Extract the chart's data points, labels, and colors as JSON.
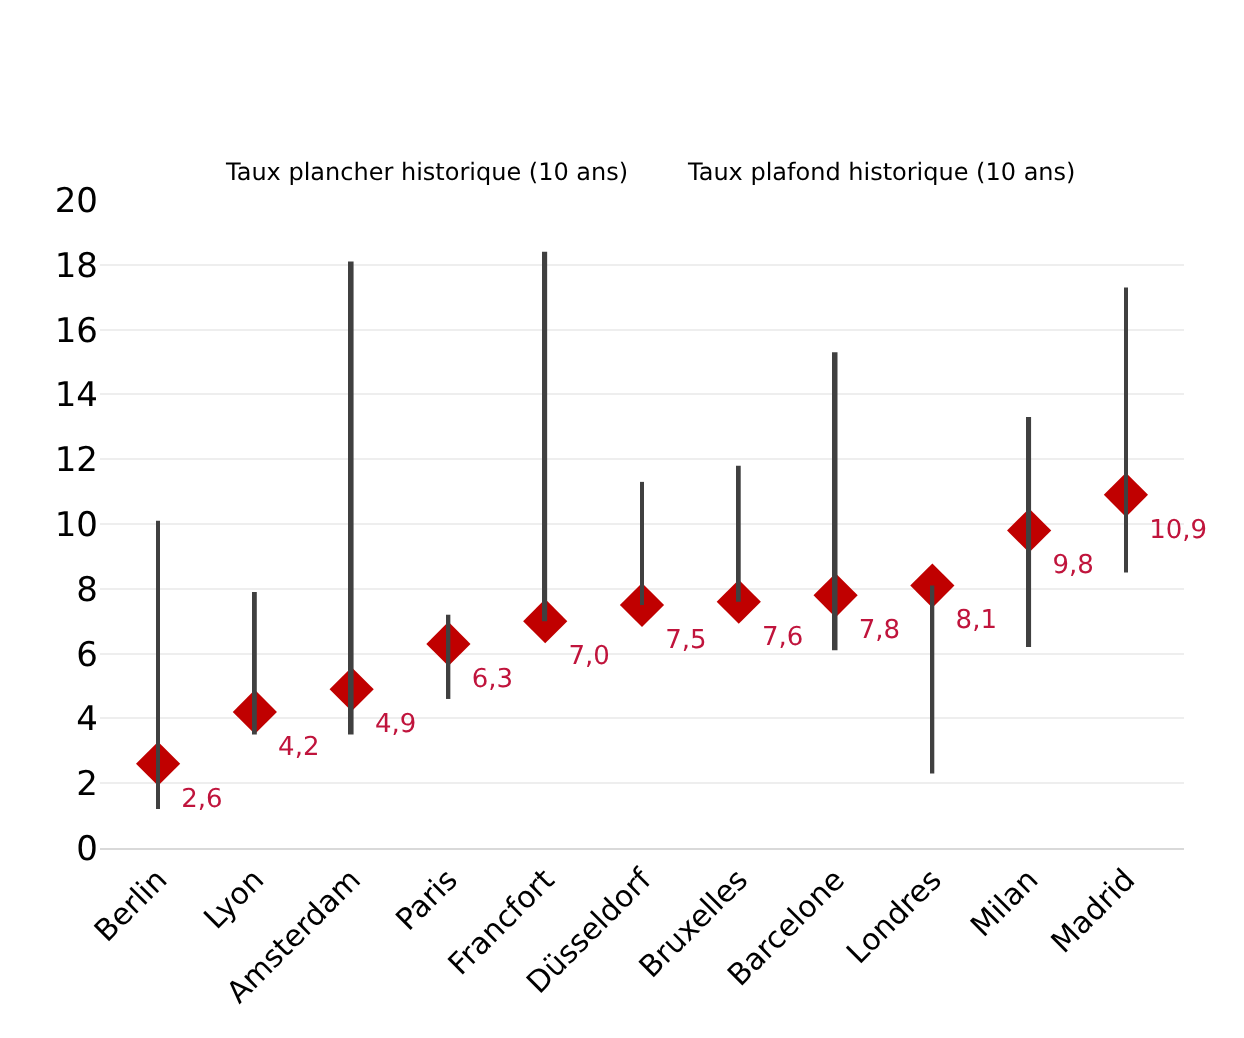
{
  "chart_data": {
    "type": "bar",
    "categories": [
      "Berlin",
      "Lyon",
      "Amsterdam",
      "Paris",
      "Francfort",
      "Düsseldorf",
      "Bruxelles",
      "Barcelone",
      "Londres",
      "Milan",
      "Madrid"
    ],
    "annotations": [
      "Taux plancher historique (10 ans)",
      "Taux plafond historique (10 ans)"
    ],
    "series": [
      {
        "color": "#404040",
        "base": [
          1.2,
          3.5,
          3.5,
          4.6,
          7.0,
          7.5,
          7.6,
          6.1,
          2.3,
          6.2,
          8.5
        ],
        "values": [
          8.9,
          4.4,
          14.6,
          2.6,
          11.4,
          3.8,
          4.2,
          9.2,
          5.8,
          7.1,
          8.8
        ]
      },
      {
        "type": "scatter",
        "marker": "diamond",
        "color": "#c00000",
        "values": [
          2.6,
          4.2,
          4.9,
          6.3,
          7.0,
          7.5,
          7.6,
          7.8,
          8.1,
          9.8,
          10.9
        ],
        "value_labels": [
          "2,6",
          "4,2",
          "4,9",
          "6,3",
          "7,0",
          "7,5",
          "7,6",
          "7,8",
          "8,1",
          "9,8",
          "10,9"
        ]
      }
    ],
    "ylim": [
      0,
      20
    ],
    "yticks": [
      0,
      2,
      4,
      6,
      8,
      10,
      12,
      14,
      16,
      18,
      20
    ],
    "grid": "y"
  }
}
